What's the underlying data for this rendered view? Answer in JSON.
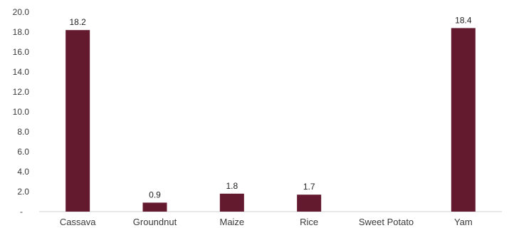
{
  "chart_data": {
    "type": "bar",
    "title": "",
    "xlabel": "",
    "ylabel": "",
    "categories": [
      "Cassava",
      "Groundnut",
      "Maize",
      "Rice",
      "Sweet Potato",
      "Yam"
    ],
    "values": [
      18.2,
      0.9,
      1.8,
      1.7,
      null,
      18.4
    ],
    "data_labels": [
      "18.2",
      "0.9",
      "1.8",
      "1.7",
      "",
      "18.4"
    ],
    "ylim": [
      0,
      20
    ],
    "yticks": [
      "-",
      "2.0",
      "4.0",
      "6.0",
      "8.0",
      "10.0",
      "12.0",
      "14.0",
      "16.0",
      "18.0",
      "20.0"
    ],
    "grid": false,
    "legend": "none",
    "bar_color": "#641A2E"
  }
}
